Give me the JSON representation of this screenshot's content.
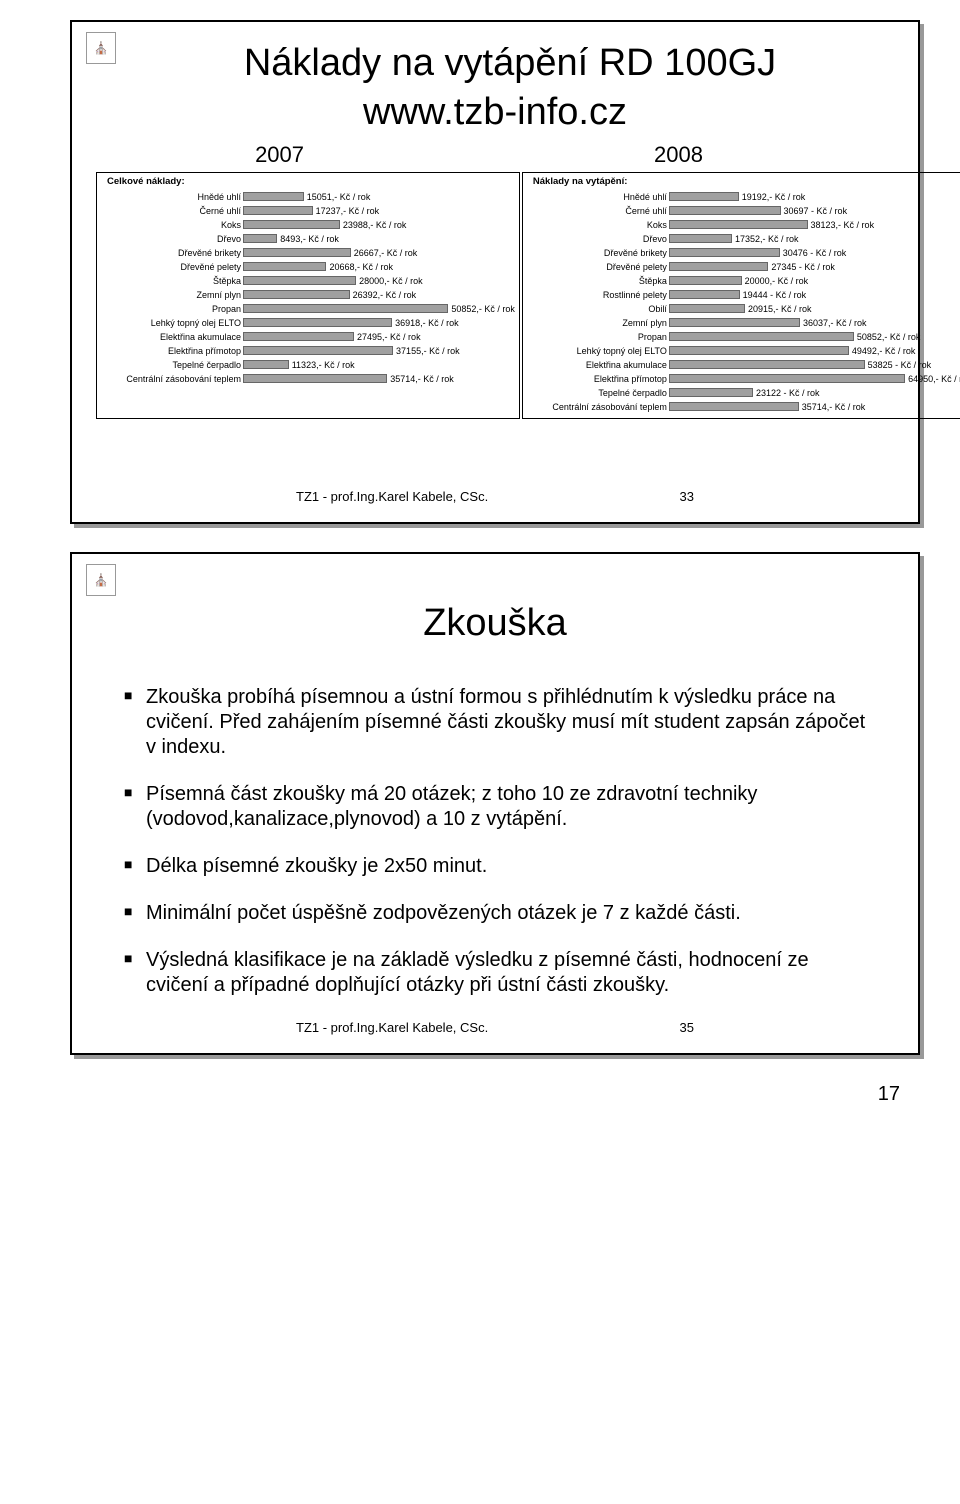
{
  "slide1": {
    "title": "Náklady na vytápění RD 100GJ",
    "subtitle": "www.tzb-info.cz",
    "year_left": "2007",
    "year_right": "2008",
    "footer_text": "TZ1 - prof.Ing.Karel Kabele, CSc.",
    "footer_num": "33",
    "chart_left": {
      "title": "Celkové náklady:",
      "label_width": 140,
      "max_value": 52000,
      "bar_area_width": 210,
      "unit": ",- Kč / rok",
      "rows": [
        {
          "label": "Hnědé uhlí",
          "value": 15051
        },
        {
          "label": "Černé uhlí",
          "value": 17237
        },
        {
          "label": "Koks",
          "value": 23988
        },
        {
          "label": "Dřevo",
          "value": 8493
        },
        {
          "label": "Dřevěné brikety",
          "value": 26667
        },
        {
          "label": "Dřevěné pelety",
          "value": 20668
        },
        {
          "label": "Štěpka",
          "value": 28000
        },
        {
          "label": "Zemní plyn",
          "value": 26392
        },
        {
          "label": "Propan",
          "value": 50852
        },
        {
          "label": "Lehký topný olej ELTO",
          "value": 36918
        },
        {
          "label": "Elektřina akumulace",
          "value": 27495
        },
        {
          "label": "Elektřina přímotop",
          "value": 37155
        },
        {
          "label": "Tepelné čerpadlo",
          "value": 11323
        },
        {
          "label": "Centrální zásobování teplem",
          "value": 35714
        }
      ]
    },
    "chart_right": {
      "title": "Náklady na vytápění:",
      "label_width": 140,
      "max_value": 66000,
      "bar_area_width": 240,
      "unit": ",- Kč / rok",
      "rows": [
        {
          "label": "Hnědé uhlí",
          "value": 19192
        },
        {
          "label": "Černé uhlí",
          "value": 30697,
          "alt_unit": " - Kč / rok"
        },
        {
          "label": "Koks",
          "value": 38123
        },
        {
          "label": "Dřevo",
          "value": 17352
        },
        {
          "label": "Dřevěné brikety",
          "value": 30476,
          "alt_unit": " - Kč / rok"
        },
        {
          "label": "Dřevěné pelety",
          "value": 27345,
          "alt_unit": " - Kč / rok"
        },
        {
          "label": "Štěpka",
          "value": 20000
        },
        {
          "label": "Rostlinné pelety",
          "value": 19444,
          "alt_unit": " - Kč / rok"
        },
        {
          "label": "Obilí",
          "value": 20915
        },
        {
          "label": "Zemní plyn",
          "value": 36037
        },
        {
          "label": "Propan",
          "value": 50852
        },
        {
          "label": "Lehký topný olej ELTO",
          "value": 49492
        },
        {
          "label": "Elektřina akumulace",
          "value": 53825,
          "alt_unit": " - Kč / rok"
        },
        {
          "label": "Elektřina přímotop",
          "value": 64950
        },
        {
          "label": "Tepelné čerpadlo",
          "value": 23122,
          "alt_unit": " - Kč / rok"
        },
        {
          "label": "Centrální zásobování teplem",
          "value": 35714
        }
      ]
    }
  },
  "slide2": {
    "title": "Zkouška",
    "footer_text": "TZ1 - prof.Ing.Karel Kabele, CSc.",
    "footer_num": "35",
    "bullets": [
      "Zkouška probíhá písemnou a ústní formou s přihlédnutím k výsledku práce na cvičení. Před zahájením písemné části zkoušky musí mít student zapsán zápočet v indexu.",
      "Písemná část zkoušky má 20 otázek; z toho 10 ze zdravotní techniky (vodovod,kanalizace,plynovod) a 10 z vytápění.",
      "Délka písemné zkoušky je 2x50 minut.",
      "Minimální počet úspěšně zodpovězených otázek je 7 z každé části.",
      "Výsledná klasifikace je na základě výsledku z písemné části, hodnocení ze cvičení a případné doplňující otázky při ústní části zkoušky."
    ]
  },
  "page_number": "17"
}
